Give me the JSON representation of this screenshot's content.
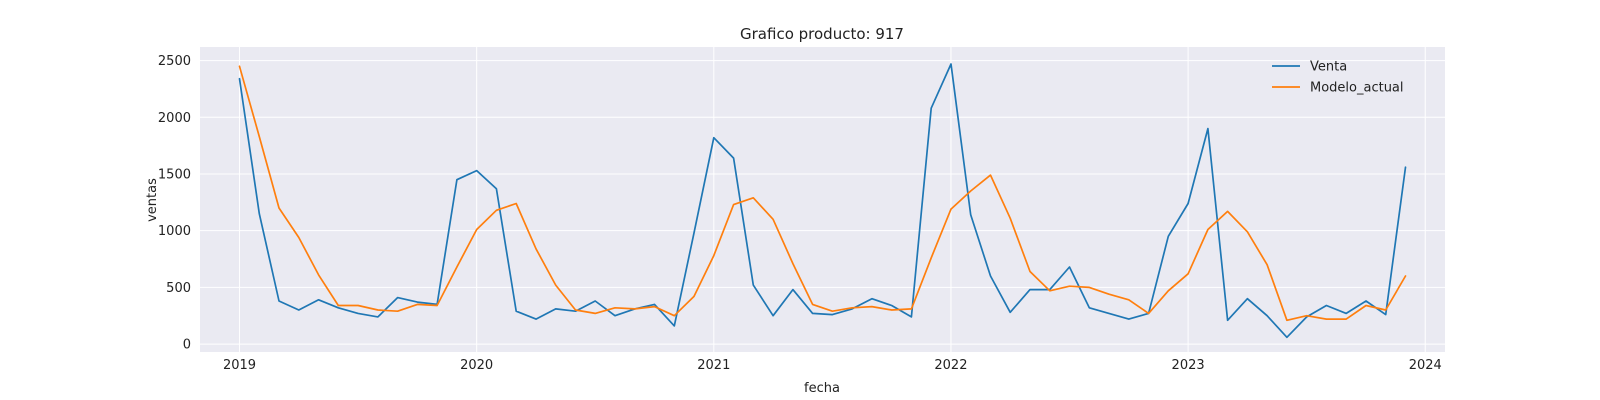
{
  "chart_data": {
    "type": "line",
    "title": "Grafico producto: 917",
    "xlabel": "fecha",
    "ylabel": "ventas",
    "x_ticks": [
      "2019",
      "2020",
      "2021",
      "2022",
      "2023",
      "2024"
    ],
    "y_ticks": [
      0,
      500,
      1000,
      1500,
      2000,
      2500
    ],
    "xlim": [
      "2018-11",
      "2024-02"
    ],
    "ylim": [
      -70,
      2620
    ],
    "grid": true,
    "legend_position": "top-right",
    "x": [
      "2019-01",
      "2019-02",
      "2019-03",
      "2019-04",
      "2019-05",
      "2019-06",
      "2019-07",
      "2019-08",
      "2019-09",
      "2019-10",
      "2019-11",
      "2019-12",
      "2020-01",
      "2020-02",
      "2020-03",
      "2020-04",
      "2020-05",
      "2020-06",
      "2020-07",
      "2020-08",
      "2020-09",
      "2020-10",
      "2020-11",
      "2020-12",
      "2021-01",
      "2021-02",
      "2021-03",
      "2021-04",
      "2021-05",
      "2021-06",
      "2021-07",
      "2021-08",
      "2021-09",
      "2021-10",
      "2021-11",
      "2021-12",
      "2022-01",
      "2022-02",
      "2022-03",
      "2022-04",
      "2022-05",
      "2022-06",
      "2022-07",
      "2022-08",
      "2022-09",
      "2022-10",
      "2022-11",
      "2022-12",
      "2023-01",
      "2023-02",
      "2023-03",
      "2023-04",
      "2023-05",
      "2023-06",
      "2023-07",
      "2023-08",
      "2023-09",
      "2023-10",
      "2023-11",
      "2023-12"
    ],
    "series": [
      {
        "name": "Venta",
        "color": "#1f77b4",
        "values": [
          2340,
          1150,
          380,
          300,
          390,
          320,
          270,
          240,
          410,
          370,
          350,
          1450,
          1530,
          1370,
          290,
          220,
          310,
          290,
          380,
          250,
          310,
          350,
          160,
          980,
          1820,
          1640,
          520,
          250,
          480,
          270,
          260,
          310,
          400,
          340,
          240,
          2080,
          2470,
          1140,
          600,
          280,
          480,
          480,
          680,
          320,
          270,
          220,
          270,
          950,
          1240,
          1900,
          210,
          400,
          250,
          60,
          240,
          340,
          270,
          380,
          260,
          1560
        ]
      },
      {
        "name": "Modelo_actual",
        "color": "#ff7f0e",
        "values": [
          2450,
          1830,
          1200,
          940,
          610,
          340,
          340,
          300,
          290,
          350,
          340,
          680,
          1010,
          1180,
          1240,
          840,
          520,
          300,
          270,
          320,
          310,
          330,
          250,
          420,
          780,
          1230,
          1290,
          1100,
          710,
          350,
          290,
          320,
          330,
          300,
          310,
          760,
          1190,
          1350,
          1490,
          1110,
          640,
          470,
          510,
          500,
          440,
          390,
          270,
          470,
          620,
          1010,
          1170,
          990,
          700,
          210,
          250,
          220,
          220,
          340,
          300,
          600
        ]
      }
    ]
  }
}
